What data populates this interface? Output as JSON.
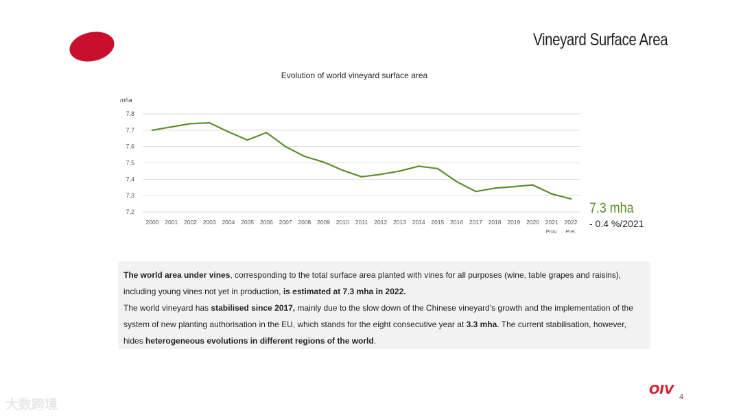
{
  "slide": {
    "title": "Vineyard Surface Area",
    "page_number": "4",
    "logo_text": "OIV",
    "watermark": "大数跨境",
    "brand_color": "#c8102e"
  },
  "callout": {
    "value": "7.3 mha",
    "change": "- 0.4 %/2021"
  },
  "chart_data": {
    "type": "line",
    "title": "Evolution of world vineyard surface area",
    "ylabel": "mha",
    "xlabel": "",
    "ylim": [
      7.2,
      7.8
    ],
    "yticks": [
      "7,2",
      "7,3",
      "7,4",
      "7,5",
      "7,6",
      "7,7",
      "7,8"
    ],
    "categories": [
      "2000",
      "2001",
      "2002",
      "2003",
      "2004",
      "2005",
      "2006",
      "2007",
      "2008",
      "2009",
      "2010",
      "2011",
      "2012",
      "2013",
      "2014",
      "2015",
      "2016",
      "2017",
      "2018",
      "2019",
      "2020",
      "2021",
      "2022"
    ],
    "sublabels": [
      "",
      "",
      "",
      "",
      "",
      "",
      "",
      "",
      "",
      "",
      "",
      "",
      "",
      "",
      "",
      "",
      "",
      "",
      "",
      "",
      "",
      "Prov.",
      "Prel."
    ],
    "series": [
      {
        "name": "World vineyard surface area",
        "color": "#5b8c2a",
        "values": [
          7.7,
          7.72,
          7.74,
          7.745,
          7.69,
          7.64,
          7.685,
          7.6,
          7.54,
          7.505,
          7.455,
          7.415,
          7.43,
          7.45,
          7.48,
          7.465,
          7.385,
          7.325,
          7.345,
          7.355,
          7.365,
          7.31,
          7.28
        ]
      }
    ],
    "grid": true
  },
  "body_text": {
    "p1_b1": "The world area under vines",
    "p1_t1": ", corresponding to the total surface area planted with vines for all purposes (wine, table grapes and raisins), including young vines not yet in production, ",
    "p1_b2": "is estimated at 7.3 mha in 2022.",
    "p2_t1": "The world vineyard has ",
    "p2_b1": "stabilised since 2017,",
    "p2_t2": " mainly due to the slow down of the Chinese vineyard’s growth  and the implementation of the system of new planting authorisation in the EU, which stands for the eight consecutive year at ",
    "p2_b2": "3.3 mha",
    "p2_t3": ". The current stabilisation, however, hides ",
    "p2_b3": "heterogeneous evolutions in different regions of the world",
    "p2_t4": "."
  }
}
